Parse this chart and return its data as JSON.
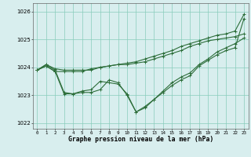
{
  "background_color": "#d8eeee",
  "grid_color": "#88ccbb",
  "line_color": "#2d6e3a",
  "xlabel": "Graphe pression niveau de la mer (hPa)",
  "xlim": [
    -0.5,
    23.5
  ],
  "ylim": [
    1021.8,
    1026.3
  ],
  "yticks": [
    1022,
    1023,
    1024,
    1025,
    1026
  ],
  "xticks": [
    0,
    1,
    2,
    3,
    4,
    5,
    6,
    7,
    8,
    9,
    10,
    11,
    12,
    13,
    14,
    15,
    16,
    17,
    18,
    19,
    20,
    21,
    22,
    23
  ],
  "line1_x": [
    0,
    1,
    2,
    3,
    4,
    5,
    6,
    7,
    8,
    9,
    10,
    11,
    12,
    13,
    14,
    15,
    16,
    17,
    18,
    19,
    20,
    21,
    22,
    23
  ],
  "line1_y": [
    1023.9,
    1024.1,
    1023.95,
    1023.9,
    1023.9,
    1023.9,
    1023.9,
    1024.0,
    1024.05,
    1024.1,
    1024.1,
    1024.15,
    1024.2,
    1024.3,
    1024.4,
    1024.5,
    1024.6,
    1024.75,
    1024.85,
    1024.95,
    1025.0,
    1025.05,
    1025.1,
    1025.2
  ],
  "line2_x": [
    0,
    1,
    2,
    3,
    4,
    5,
    6,
    7,
    8,
    9,
    10,
    11,
    12,
    13,
    14,
    15,
    16,
    17,
    18,
    19,
    20,
    21,
    22,
    23
  ],
  "line2_y": [
    1023.9,
    1024.1,
    1023.9,
    1023.1,
    1023.05,
    1023.1,
    1023.1,
    1023.2,
    1023.55,
    1023.45,
    1023.0,
    1022.4,
    1022.55,
    1022.85,
    1023.1,
    1023.35,
    1023.55,
    1023.7,
    1024.05,
    1024.25,
    1024.45,
    1024.6,
    1024.7,
    1025.75
  ],
  "line3_x": [
    0,
    1,
    2,
    3,
    4,
    5,
    6,
    7,
    8,
    9,
    10,
    11,
    12,
    13,
    14,
    15,
    16,
    17,
    18,
    19,
    20,
    21,
    22,
    23
  ],
  "line3_y": [
    1023.9,
    1024.05,
    1023.85,
    1023.85,
    1023.85,
    1023.85,
    1023.95,
    1024.0,
    1024.05,
    1024.1,
    1024.15,
    1024.2,
    1024.3,
    1024.4,
    1024.5,
    1024.6,
    1024.75,
    1024.85,
    1024.95,
    1025.05,
    1025.15,
    1025.2,
    1025.3,
    1025.9
  ],
  "line4_x": [
    0,
    1,
    2,
    3,
    4,
    5,
    6,
    7,
    8,
    9,
    10,
    11,
    12,
    13,
    14,
    15,
    16,
    17,
    18,
    19,
    20,
    21,
    22,
    23
  ],
  "line4_y": [
    1023.9,
    1024.05,
    1023.85,
    1023.05,
    1023.05,
    1023.15,
    1023.2,
    1023.5,
    1023.45,
    1023.4,
    1023.05,
    1022.4,
    1022.6,
    1022.85,
    1023.15,
    1023.45,
    1023.65,
    1023.8,
    1024.1,
    1024.3,
    1024.55,
    1024.7,
    1024.85,
    1025.05
  ]
}
